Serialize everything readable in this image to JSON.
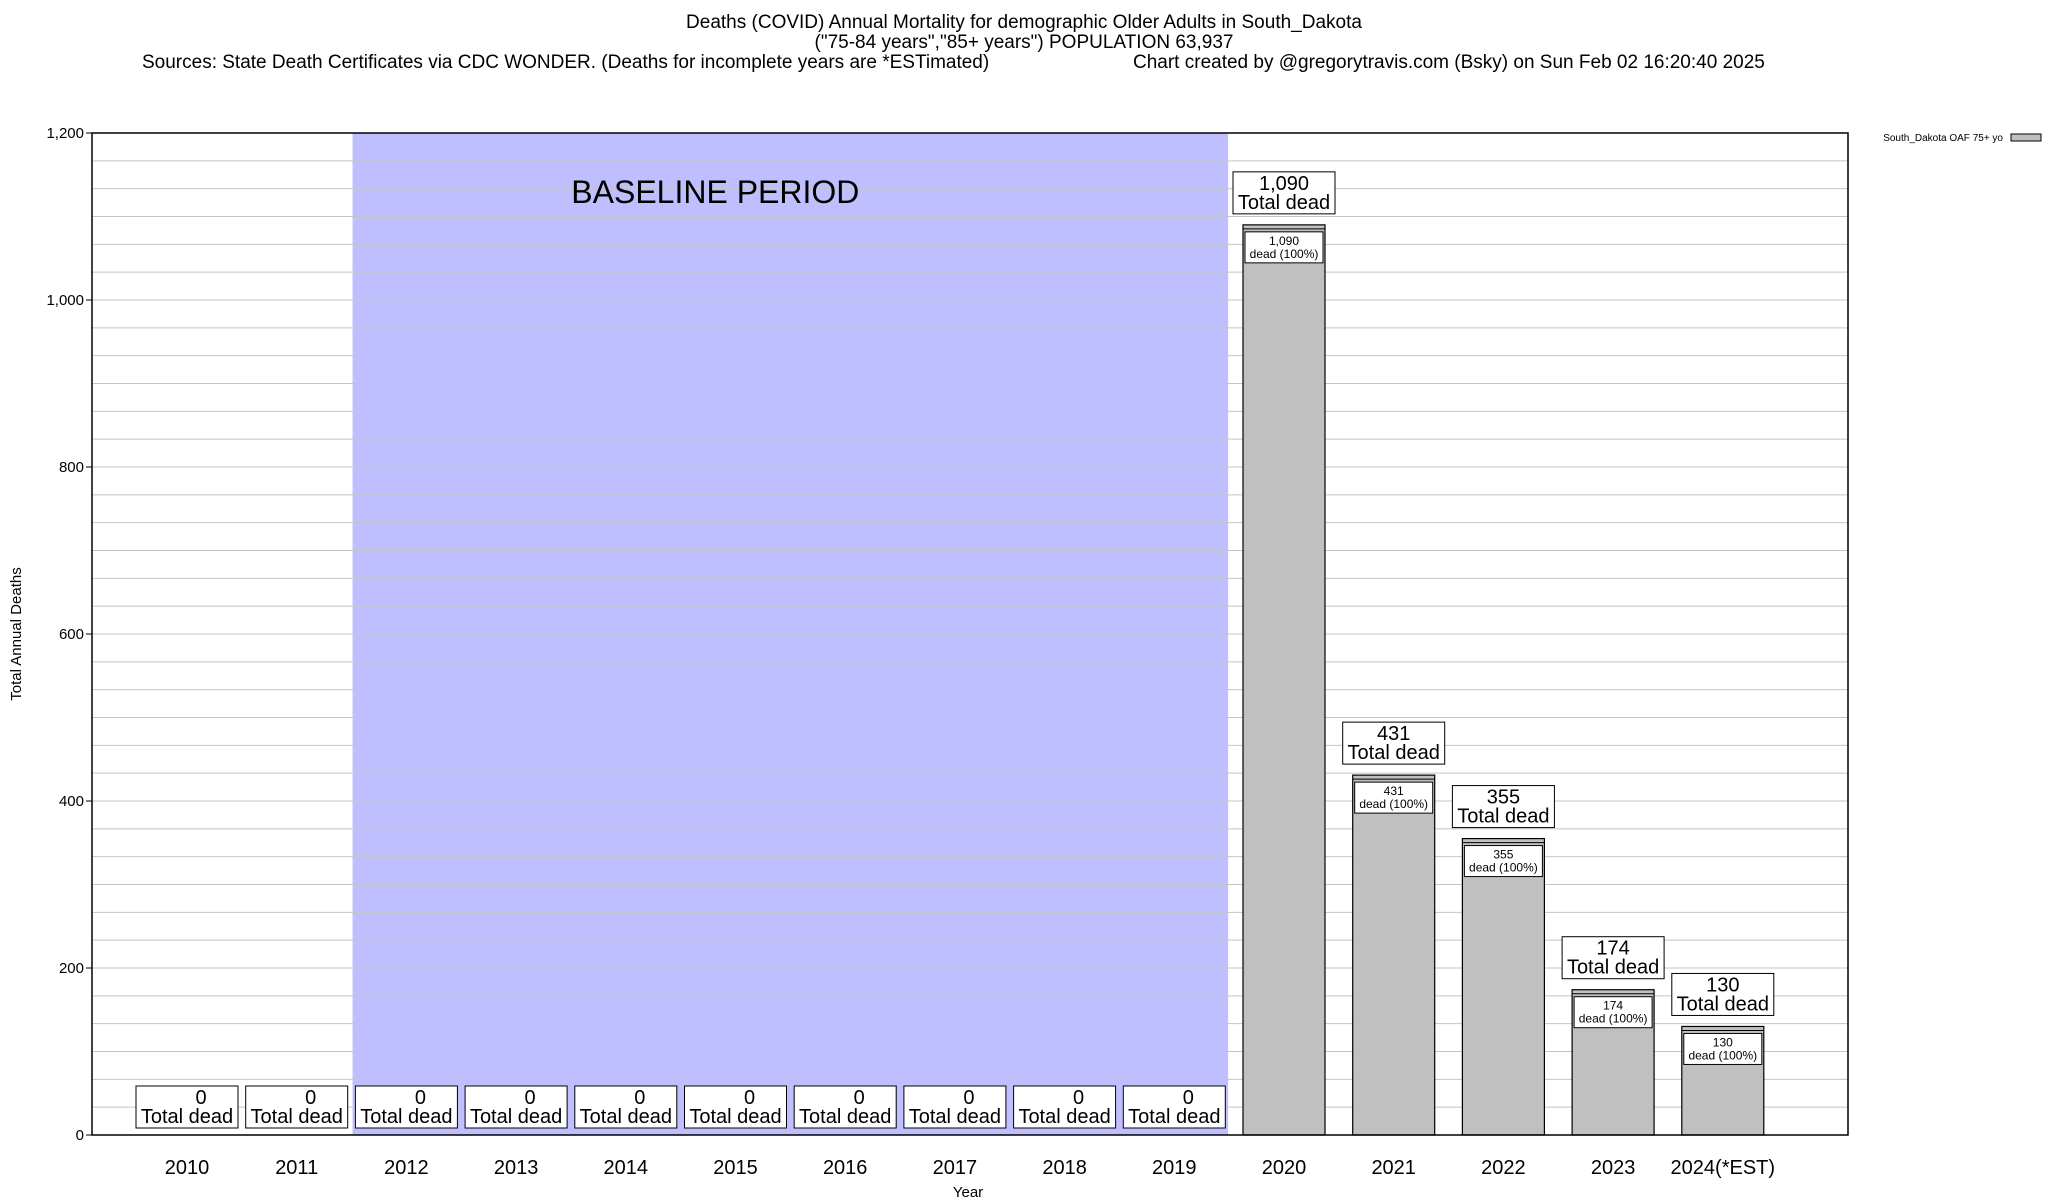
{
  "chart_data": {
    "type": "bar",
    "title": "Deaths (COVID) Annual Mortality for demographic Older Adults in South_Dakota",
    "subtitle": "(\"75-84 years\",\"85+ years\") POPULATION 63,937",
    "sources": "Sources: State Death Certificates via CDC WONDER. (Deaths for incomplete years are *ESTimated)",
    "credit": "Chart created by @gregorytravis.com (Bsky) on Sun Feb 02 16:20:40 2025",
    "xlabel": "Year",
    "ylabel": "Total Annual Deaths",
    "ylim": [
      0,
      1200
    ],
    "yticks": [
      0,
      200,
      400,
      600,
      800,
      1000,
      1200
    ],
    "ytick_labels": [
      "0",
      "200",
      "400",
      "600",
      "800",
      "1,000",
      "1,200"
    ],
    "grid": true,
    "legend_position": "top-right",
    "categories": [
      "2010",
      "2011",
      "2012",
      "2013",
      "2014",
      "2015",
      "2016",
      "2017",
      "2018",
      "2019",
      "2020",
      "2021",
      "2022",
      "2023",
      "2024(*EST)"
    ],
    "series": [
      {
        "name": "South_Dakota OAF 75+ yo",
        "color": "#c0c0c0",
        "values": [
          0,
          0,
          0,
          0,
          0,
          0,
          0,
          0,
          0,
          0,
          1090,
          431,
          355,
          174,
          130
        ]
      }
    ],
    "total_labels": [
      "0",
      "0",
      "0",
      "0",
      "0",
      "0",
      "0",
      "0",
      "0",
      "0",
      "1,090",
      "431",
      "355",
      "174",
      "130"
    ],
    "total_caption": "Total dead",
    "bar_labels": [
      "",
      "",
      "",
      "",
      "",
      "",
      "",
      "",
      "",
      "",
      "1,090",
      "431",
      "355",
      "174",
      "130"
    ],
    "bar_caption": "dead (100%)",
    "baseline": {
      "label": "BASELINE PERIOD",
      "start": "2012",
      "end": "2019",
      "color": "#bfbfff"
    }
  }
}
